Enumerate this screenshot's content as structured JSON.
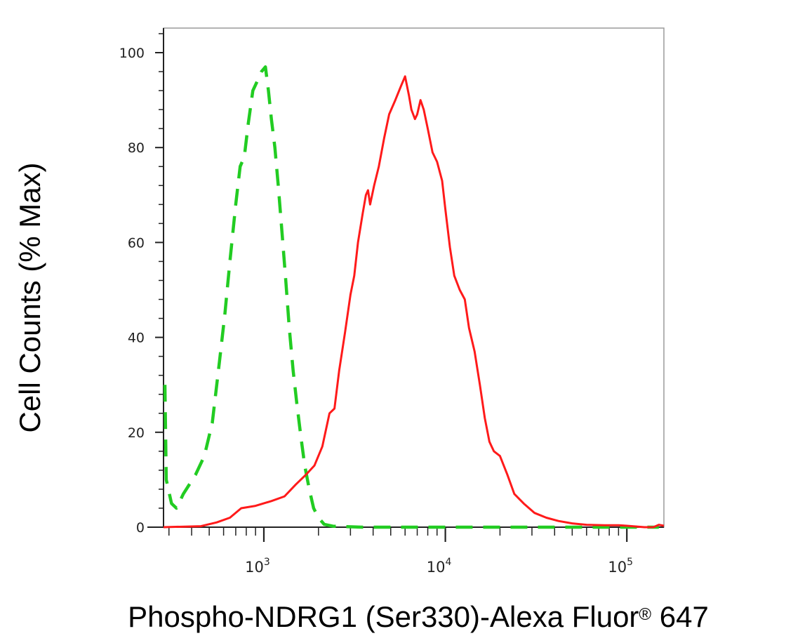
{
  "chart_data": {
    "type": "line",
    "xlabel": "Phospho-NDRG1 (Ser330)-Alexa Fluor",
    "xlabel_mark": "®",
    "xlabel_suffix": " 647",
    "ylabel": "Cell Counts (% Max)",
    "x_scale": "log",
    "xlim": [
      280,
      160000
    ],
    "ylim": [
      0,
      105
    ],
    "x_ticks": [
      {
        "value": 1000,
        "base": "10",
        "exp": "3"
      },
      {
        "value": 10000,
        "base": "10",
        "exp": "4"
      },
      {
        "value": 100000,
        "base": "10",
        "exp": "5"
      }
    ],
    "y_ticks": [
      {
        "value": 0,
        "label": "0"
      },
      {
        "value": 20,
        "label": "20"
      },
      {
        "value": 40,
        "label": "40"
      },
      {
        "value": 60,
        "label": "60"
      },
      {
        "value": 80,
        "label": "80"
      },
      {
        "value": 100,
        "label": "100"
      }
    ],
    "grid": false,
    "legend": "none",
    "series": [
      {
        "style": "dashed",
        "color": "#22cc22",
        "points": [
          [
            285,
            30
          ],
          [
            290,
            10
          ],
          [
            310,
            5
          ],
          [
            330,
            4
          ],
          [
            360,
            7
          ],
          [
            420,
            11
          ],
          [
            470,
            15
          ],
          [
            520,
            22
          ],
          [
            570,
            35
          ],
          [
            610,
            45
          ],
          [
            650,
            56
          ],
          [
            700,
            68
          ],
          [
            740,
            76
          ],
          [
            780,
            78
          ],
          [
            820,
            85
          ],
          [
            870,
            92
          ],
          [
            920,
            94
          ],
          [
            970,
            96
          ],
          [
            1020,
            97
          ],
          [
            1060,
            92
          ],
          [
            1100,
            86
          ],
          [
            1150,
            80
          ],
          [
            1200,
            72
          ],
          [
            1260,
            62
          ],
          [
            1320,
            52
          ],
          [
            1380,
            42
          ],
          [
            1450,
            33
          ],
          [
            1520,
            26
          ],
          [
            1600,
            19
          ],
          [
            1680,
            13
          ],
          [
            1780,
            8
          ],
          [
            1880,
            4
          ],
          [
            2000,
            2
          ],
          [
            2150,
            0.6
          ],
          [
            2400,
            0.2
          ],
          [
            3500,
            0
          ],
          [
            10000,
            0
          ],
          [
            100000,
            0
          ],
          [
            150000,
            0
          ]
        ]
      },
      {
        "style": "solid",
        "color": "#ff1a1a",
        "points": [
          [
            280,
            0
          ],
          [
            450,
            0.2
          ],
          [
            550,
            1
          ],
          [
            650,
            2
          ],
          [
            750,
            4
          ],
          [
            900,
            4.5
          ],
          [
            1100,
            5.5
          ],
          [
            1300,
            6.5
          ],
          [
            1500,
            9
          ],
          [
            1700,
            11
          ],
          [
            1900,
            13
          ],
          [
            2100,
            17
          ],
          [
            2300,
            24
          ],
          [
            2450,
            25
          ],
          [
            2600,
            33
          ],
          [
            2800,
            41
          ],
          [
            3000,
            49
          ],
          [
            3150,
            53
          ],
          [
            3300,
            60
          ],
          [
            3500,
            66
          ],
          [
            3650,
            70
          ],
          [
            3750,
            71
          ],
          [
            3850,
            68
          ],
          [
            4050,
            72
          ],
          [
            4300,
            76
          ],
          [
            4600,
            82
          ],
          [
            4900,
            87
          ],
          [
            5300,
            90
          ],
          [
            5700,
            93
          ],
          [
            6000,
            95
          ],
          [
            6300,
            91
          ],
          [
            6500,
            88
          ],
          [
            6800,
            86
          ],
          [
            7000,
            87
          ],
          [
            7300,
            90
          ],
          [
            7600,
            88
          ],
          [
            8000,
            84
          ],
          [
            8500,
            79
          ],
          [
            9000,
            77
          ],
          [
            9600,
            73
          ],
          [
            10000,
            67
          ],
          [
            10600,
            59
          ],
          [
            11200,
            53
          ],
          [
            12000,
            50
          ],
          [
            12800,
            48
          ],
          [
            13500,
            42
          ],
          [
            14500,
            37
          ],
          [
            15500,
            30
          ],
          [
            16500,
            23
          ],
          [
            17500,
            18
          ],
          [
            18500,
            16
          ],
          [
            20000,
            15
          ],
          [
            22000,
            11
          ],
          [
            24000,
            7
          ],
          [
            27000,
            5
          ],
          [
            31000,
            3
          ],
          [
            36000,
            2
          ],
          [
            42000,
            1.3
          ],
          [
            50000,
            0.8
          ],
          [
            60000,
            0.5
          ],
          [
            75000,
            0.4
          ],
          [
            90000,
            0.4
          ],
          [
            100000,
            0.3
          ],
          [
            115000,
            0.1
          ],
          [
            125000,
            0
          ],
          [
            140000,
            0
          ],
          [
            150000,
            0.5
          ],
          [
            160000,
            0.3
          ]
        ]
      }
    ]
  }
}
